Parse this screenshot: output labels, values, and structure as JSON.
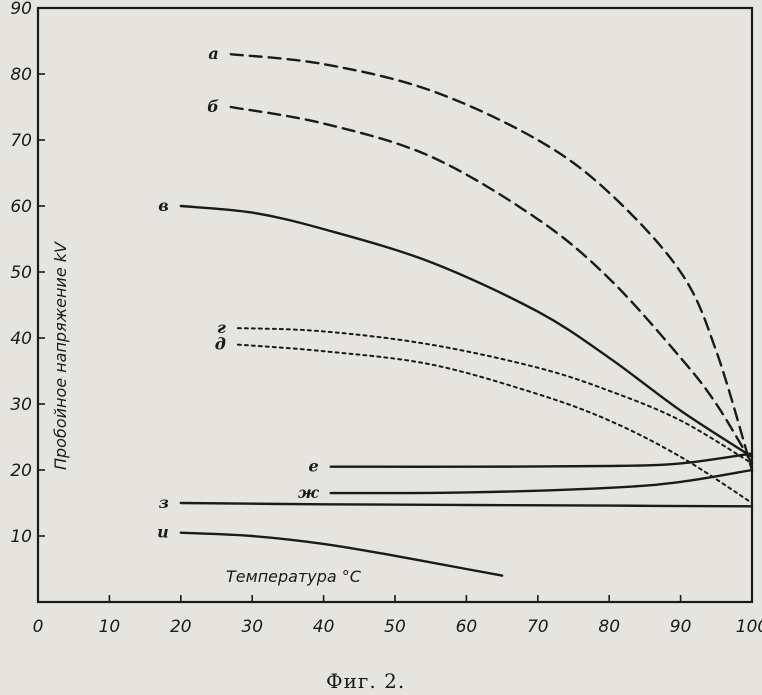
{
  "chart_data": {
    "type": "line",
    "title": "",
    "caption": "Фиг. 2.",
    "xlabel": "Температура °C",
    "ylabel": "Пробойное напряжение kV",
    "xlim": [
      0,
      100
    ],
    "ylim": [
      0,
      90
    ],
    "x_ticks": [
      "0",
      "10",
      "20",
      "30",
      "40",
      "50",
      "60",
      "70",
      "80",
      "90",
      "100"
    ],
    "y_ticks": [
      "10",
      "20",
      "30",
      "40",
      "50",
      "60",
      "70",
      "80",
      "90"
    ],
    "grid": false,
    "series": [
      {
        "name": "а",
        "style": "dashed",
        "x": [
          27,
          40,
          55,
          70,
          80,
          90,
          95,
          100
        ],
        "y": [
          83,
          81.5,
          77.5,
          70,
          62,
          50,
          38,
          20
        ]
      },
      {
        "name": "б",
        "style": "dashed",
        "x": [
          27,
          40,
          55,
          70,
          80,
          90,
          95,
          100
        ],
        "y": [
          75,
          72.5,
          67.5,
          58,
          49,
          37,
          30,
          21
        ]
      },
      {
        "name": "в",
        "style": "solid",
        "x": [
          20,
          30,
          40,
          55,
          70,
          80,
          90,
          100
        ],
        "y": [
          60,
          59,
          56.5,
          51.5,
          44,
          37,
          29,
          22
        ]
      },
      {
        "name": "г",
        "style": "dotted",
        "x": [
          28,
          40,
          55,
          70,
          80,
          90,
          100
        ],
        "y": [
          41.5,
          41,
          39,
          35.5,
          32,
          27.5,
          21
        ]
      },
      {
        "name": "д",
        "style": "dotted",
        "x": [
          28,
          40,
          55,
          70,
          80,
          90,
          100
        ],
        "y": [
          39,
          38,
          36,
          31.5,
          27.5,
          22,
          15
        ]
      },
      {
        "name": "е",
        "style": "solid",
        "x": [
          41,
          60,
          80,
          90,
          100
        ],
        "y": [
          20.5,
          20.5,
          20.6,
          21,
          22.5
        ]
      },
      {
        "name": "ж",
        "style": "solid",
        "x": [
          41,
          60,
          80,
          90,
          100
        ],
        "y": [
          16.5,
          16.6,
          17.3,
          18.2,
          20
        ]
      },
      {
        "name": "з",
        "style": "solid",
        "x": [
          20,
          40,
          60,
          80,
          100
        ],
        "y": [
          15,
          14.8,
          14.7,
          14.6,
          14.5
        ]
      },
      {
        "name": "и",
        "style": "solid",
        "x": [
          20,
          30,
          40,
          50,
          60,
          65
        ],
        "y": [
          10.5,
          10,
          8.8,
          7,
          5,
          4
        ]
      }
    ]
  }
}
